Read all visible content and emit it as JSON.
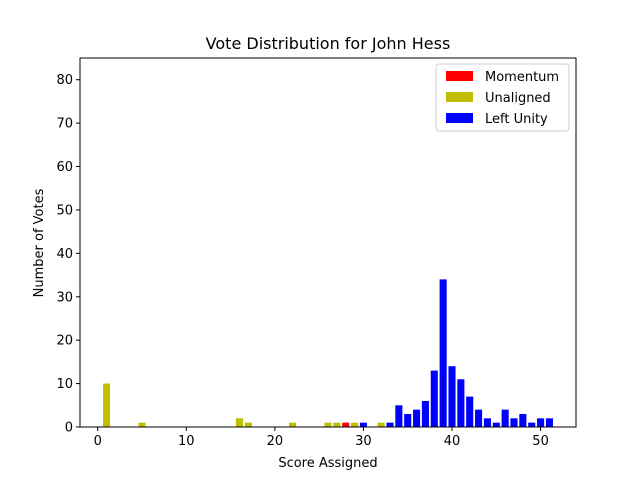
{
  "chart_data": {
    "type": "bar",
    "title": "Vote Distribution for John Hess",
    "xlabel": "Score Assigned",
    "ylabel": "Number of Votes",
    "xlim": [
      -2,
      54
    ],
    "ylim": [
      0,
      85
    ],
    "xticks": [
      0,
      10,
      20,
      30,
      40,
      50
    ],
    "yticks": [
      0,
      10,
      20,
      30,
      40,
      50,
      60,
      70,
      80
    ],
    "legend_position": "top-right",
    "grid": false,
    "series": [
      {
        "name": "Momentum",
        "color": "#ff0000",
        "points": [
          {
            "x": 28,
            "y": 1
          }
        ]
      },
      {
        "name": "Unaligned",
        "color": "#bfbf00",
        "points": [
          {
            "x": 1,
            "y": 10
          },
          {
            "x": 5,
            "y": 1
          },
          {
            "x": 16,
            "y": 2
          },
          {
            "x": 17,
            "y": 1
          },
          {
            "x": 22,
            "y": 1
          },
          {
            "x": 26,
            "y": 1
          },
          {
            "x": 27,
            "y": 1
          },
          {
            "x": 29,
            "y": 1
          },
          {
            "x": 32,
            "y": 1
          }
        ]
      },
      {
        "name": "Left Unity",
        "color": "#0000ff",
        "points": [
          {
            "x": 30,
            "y": 1
          },
          {
            "x": 33,
            "y": 1
          },
          {
            "x": 34,
            "y": 5
          },
          {
            "x": 35,
            "y": 3
          },
          {
            "x": 36,
            "y": 4
          },
          {
            "x": 37,
            "y": 6
          },
          {
            "x": 38,
            "y": 13
          },
          {
            "x": 39,
            "y": 34
          },
          {
            "x": 40,
            "y": 14
          },
          {
            "x": 41,
            "y": 11
          },
          {
            "x": 42,
            "y": 7
          },
          {
            "x": 43,
            "y": 4
          },
          {
            "x": 44,
            "y": 2
          },
          {
            "x": 45,
            "y": 1
          },
          {
            "x": 46,
            "y": 4
          },
          {
            "x": 47,
            "y": 2
          },
          {
            "x": 48,
            "y": 3
          },
          {
            "x": 49,
            "y": 1
          },
          {
            "x": 50,
            "y": 2
          },
          {
            "x": 51,
            "y": 2
          }
        ]
      }
    ]
  }
}
